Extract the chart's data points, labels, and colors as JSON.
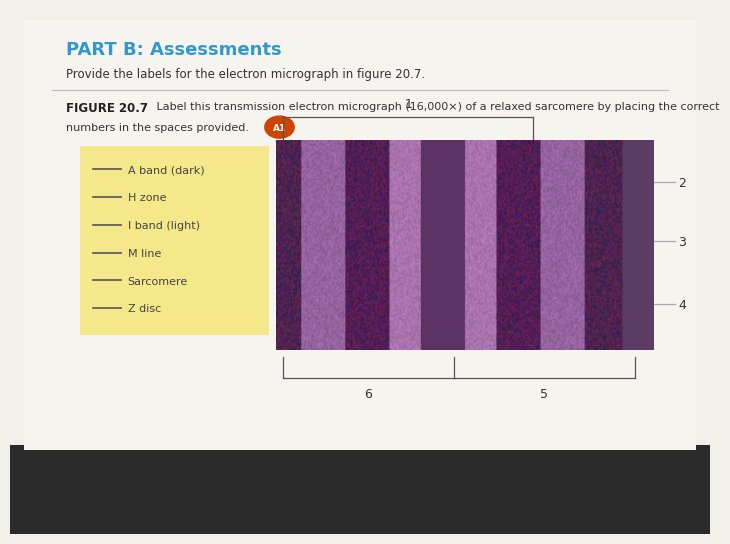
{
  "bg_color": "#f0efe8",
  "page_color": "#f5f4ef",
  "dark_band_color": "#222222",
  "title_text": "PART B: Assessments",
  "title_color": "#3399cc",
  "subtitle_text": "Provide the labels for the electron micrograph in figure 20.7.",
  "figure_label": "FIGURE 20.7",
  "figure_caption_1": "Label this transmission electron micrograph (16,000×) of a relaxed sarcomere by placing the correct",
  "figure_caption_2": "numbers in the spaces provided.",
  "badge_text": "A1",
  "badge_color": "#cc4400",
  "legend_items": [
    "A band (dark)",
    "H zone",
    "I band (light)",
    "M line",
    "Sarcomere",
    "Z disc"
  ],
  "legend_bg": "#f5e88a",
  "separator_color": "#bbbbbb",
  "pointer_color": "#aaaaaa",
  "bracket_color": "#555555"
}
